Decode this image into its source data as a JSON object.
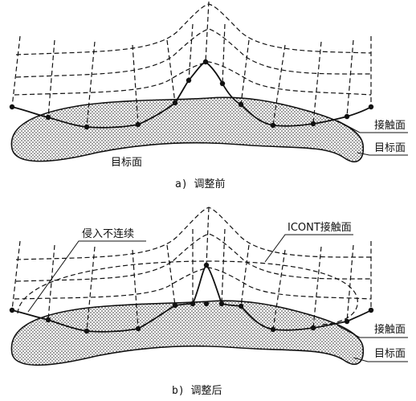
{
  "panel_a": {
    "caption": "a) 调整前",
    "label_contact": "接触面",
    "label_target_right": "目标面",
    "label_target_inner": "目标面"
  },
  "panel_b": {
    "caption": "b) 调整后",
    "label_penetration": "侵入不连续",
    "label_icont": "ICONT接触面",
    "label_contact": "接触面",
    "label_target_right": "目标面"
  },
  "colors": {
    "ink": "#111111",
    "background": "#ffffff"
  }
}
